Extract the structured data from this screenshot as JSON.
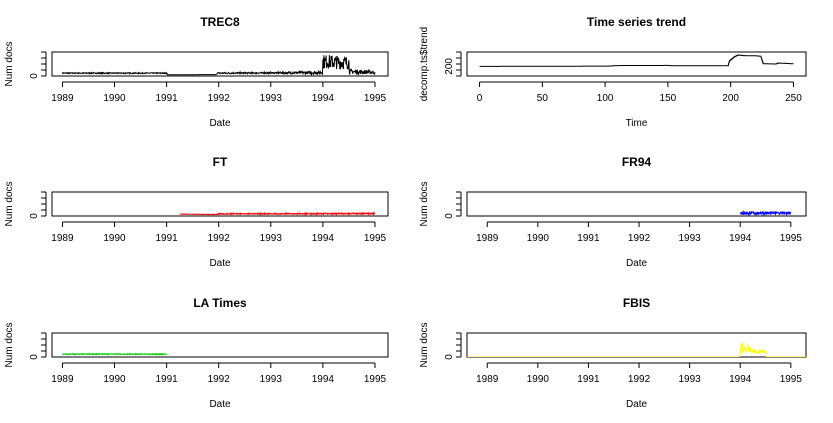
{
  "chart_data": [
    {
      "type": "line",
      "title": "TREC8",
      "xlabel": "Date",
      "ylabel": "Num docs",
      "xticks": [
        "1989",
        "1990",
        "1991",
        "1992",
        "1993",
        "1994",
        "1995"
      ],
      "yticks": [
        "0"
      ],
      "xlim": [
        1989,
        1995
      ],
      "ylim": [
        0,
        100
      ],
      "series": [
        {
          "color": "#000000",
          "points": [
            {
              "x": 1989.0,
              "y": 12,
              "noise": 2
            },
            {
              "x": 1991.0,
              "y": 12,
              "noise": 2
            },
            {
              "x": 1991.02,
              "y": 5,
              "noise": 0
            },
            {
              "x": 1991.95,
              "y": 6,
              "noise": 0
            },
            {
              "x": 1991.97,
              "y": 12,
              "noise": 3
            },
            {
              "x": 1993.1,
              "y": 13,
              "noise": 3
            },
            {
              "x": 1993.9,
              "y": 14,
              "noise": 7
            },
            {
              "x": 1993.99,
              "y": 15,
              "noise": 7
            },
            {
              "x": 1994.0,
              "y": 60,
              "noise": 30
            },
            {
              "x": 1994.5,
              "y": 55,
              "noise": 28
            },
            {
              "x": 1994.51,
              "y": 18,
              "noise": 10
            },
            {
              "x": 1995.0,
              "y": 16,
              "noise": 8
            }
          ]
        }
      ]
    },
    {
      "type": "line",
      "title": "Time series trend",
      "xlabel": "Time",
      "ylabel": "decomp.ts$trend",
      "xticks": [
        "0",
        "50",
        "100",
        "150",
        "200",
        "250"
      ],
      "yticks": [
        "200"
      ],
      "xlim": [
        0,
        250
      ],
      "ylim": [
        120,
        320
      ],
      "series": [
        {
          "color": "#000000",
          "points": [
            {
              "x": 0,
              "y": 200
            },
            {
              "x": 40,
              "y": 201
            },
            {
              "x": 80,
              "y": 202
            },
            {
              "x": 105,
              "y": 203
            },
            {
              "x": 108,
              "y": 207
            },
            {
              "x": 150,
              "y": 208
            },
            {
              "x": 155,
              "y": 205
            },
            {
              "x": 198,
              "y": 205
            },
            {
              "x": 199,
              "y": 245
            },
            {
              "x": 203,
              "y": 280
            },
            {
              "x": 206,
              "y": 295
            },
            {
              "x": 210,
              "y": 290
            },
            {
              "x": 220,
              "y": 288
            },
            {
              "x": 224,
              "y": 285
            },
            {
              "x": 226,
              "y": 222
            },
            {
              "x": 236,
              "y": 220
            },
            {
              "x": 238,
              "y": 228
            },
            {
              "x": 250,
              "y": 222
            }
          ]
        }
      ]
    },
    {
      "type": "line",
      "title": "FT",
      "xlabel": "Date",
      "ylabel": "Num docs",
      "xticks": [
        "1989",
        "1990",
        "1991",
        "1992",
        "1993",
        "1994",
        "1995"
      ],
      "yticks": [
        "0"
      ],
      "xlim": [
        1989,
        1995
      ],
      "ylim": [
        0,
        100
      ],
      "series": [
        {
          "color": "#ff0000",
          "points": [
            {
              "x": 1991.25,
              "y": 8,
              "noise": 1
            },
            {
              "x": 1991.95,
              "y": 6,
              "noise": 1
            },
            {
              "x": 1992.0,
              "y": 9,
              "noise": 2
            },
            {
              "x": 1995.0,
              "y": 10,
              "noise": 3
            }
          ]
        }
      ]
    },
    {
      "type": "line",
      "title": "FR94",
      "xlabel": "Date",
      "ylabel": "Num docs",
      "xticks": [
        "1989",
        "1990",
        "1991",
        "1992",
        "1993",
        "1994",
        "1995"
      ],
      "yticks": [
        "0"
      ],
      "xlim": [
        1989,
        1995
      ],
      "ylim": [
        0,
        100
      ],
      "series": [
        {
          "color": "#0000ff",
          "points": [
            {
              "x": 1994.0,
              "y": 12,
              "noise": 6
            },
            {
              "x": 1995.0,
              "y": 12,
              "noise": 6
            }
          ]
        }
      ]
    },
    {
      "type": "line",
      "title": "LA Times",
      "xlabel": "Date",
      "ylabel": "Num docs",
      "xticks": [
        "1989",
        "1990",
        "1991",
        "1992",
        "1993",
        "1994",
        "1995"
      ],
      "yticks": [
        "0"
      ],
      "xlim": [
        1989,
        1995
      ],
      "ylim": [
        0,
        100
      ],
      "series": [
        {
          "color": "#00cc00",
          "points": [
            {
              "x": 1989.0,
              "y": 12,
              "noise": 2
            },
            {
              "x": 1991.0,
              "y": 12,
              "noise": 2
            }
          ]
        }
      ]
    },
    {
      "type": "line",
      "title": "FBIS",
      "xlabel": "Date",
      "ylabel": "Num docs",
      "xticks": [
        "1989",
        "1990",
        "1991",
        "1992",
        "1993",
        "1994",
        "1995"
      ],
      "yticks": [
        "0"
      ],
      "xlim": [
        1989,
        1995
      ],
      "ylim": [
        0,
        100
      ],
      "series": [
        {
          "color": "#ffff00",
          "points": [
            {
              "x": 1988.6,
              "y": 0,
              "noise": 0
            },
            {
              "x": 1993.99,
              "y": 0,
              "noise": 0
            },
            {
              "x": 1994.0,
              "y": 40,
              "noise": 25
            },
            {
              "x": 1994.15,
              "y": 35,
              "noise": 20
            },
            {
              "x": 1994.2,
              "y": 25,
              "noise": 8
            },
            {
              "x": 1994.5,
              "y": 22,
              "noise": 6
            },
            {
              "x": 1994.51,
              "y": 0,
              "noise": 0
            },
            {
              "x": 1995.3,
              "y": 0,
              "noise": 0
            }
          ]
        }
      ]
    }
  ]
}
